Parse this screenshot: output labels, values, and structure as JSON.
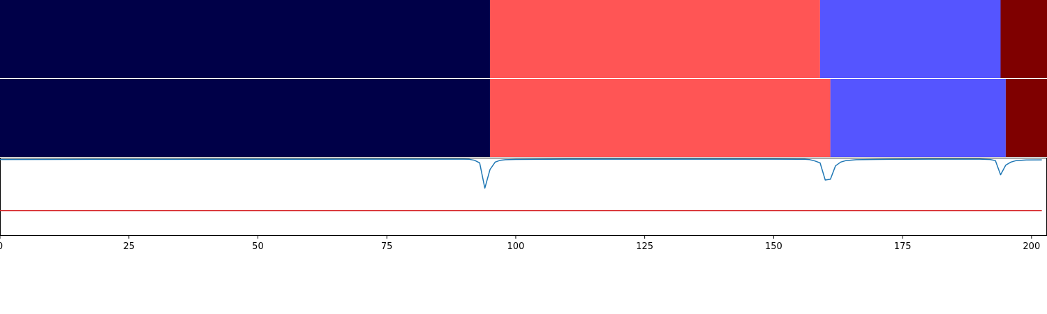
{
  "chart_data": [
    {
      "type": "segmentation-bar",
      "xlim": [
        0,
        203
      ],
      "segments": [
        {
          "start": 0,
          "end": 95,
          "color": "#000048"
        },
        {
          "start": 95,
          "end": 159,
          "color": "#ff5555"
        },
        {
          "start": 159,
          "end": 194,
          "color": "#5555ff"
        },
        {
          "start": 194,
          "end": 203,
          "color": "#7f0000"
        }
      ]
    },
    {
      "type": "segmentation-bar",
      "xlim": [
        0,
        203
      ],
      "segments": [
        {
          "start": 0,
          "end": 95,
          "color": "#000048"
        },
        {
          "start": 95,
          "end": 161,
          "color": "#ff5555"
        },
        {
          "start": 161,
          "end": 195,
          "color": "#5555ff"
        },
        {
          "start": 195,
          "end": 203,
          "color": "#7f0000"
        }
      ]
    },
    {
      "type": "line",
      "xlim": [
        0,
        203
      ],
      "ylim": [
        -0.03,
        1.0
      ],
      "xticks": [
        0,
        25,
        50,
        75,
        100,
        125,
        150,
        175,
        200
      ],
      "xtick_labels": [
        "0",
        "25",
        "50",
        "75",
        "100",
        "125",
        "150",
        "175",
        "200"
      ],
      "threshold": {
        "value": 0.3,
        "color": "#d62728"
      },
      "series": [
        {
          "color": "#1f77b4",
          "points": [
            [
              0,
              0.985
            ],
            [
              10,
              0.986
            ],
            [
              20,
              0.987
            ],
            [
              40,
              0.988
            ],
            [
              60,
              0.989
            ],
            [
              80,
              0.99
            ],
            [
              90,
              0.99
            ],
            [
              91,
              0.988
            ],
            [
              92,
              0.975
            ],
            [
              93,
              0.94
            ],
            [
              94,
              0.6
            ],
            [
              95,
              0.85
            ],
            [
              96,
              0.95
            ],
            [
              97,
              0.975
            ],
            [
              98,
              0.982
            ],
            [
              100,
              0.986
            ],
            [
              110,
              0.99
            ],
            [
              130,
              0.99
            ],
            [
              150,
              0.99
            ],
            [
              156,
              0.988
            ],
            [
              157,
              0.983
            ],
            [
              158,
              0.965
            ],
            [
              159,
              0.94
            ],
            [
              160,
              0.71
            ],
            [
              161,
              0.72
            ],
            [
              162,
              0.9
            ],
            [
              163,
              0.95
            ],
            [
              164,
              0.97
            ],
            [
              166,
              0.982
            ],
            [
              170,
              0.986
            ],
            [
              180,
              0.99
            ],
            [
              190,
              0.99
            ],
            [
              192,
              0.985
            ],
            [
              193,
              0.97
            ],
            [
              194,
              0.78
            ],
            [
              195,
              0.91
            ],
            [
              196,
              0.95
            ],
            [
              197,
              0.97
            ],
            [
              199,
              0.978
            ],
            [
              202,
              0.98
            ]
          ]
        }
      ]
    }
  ]
}
